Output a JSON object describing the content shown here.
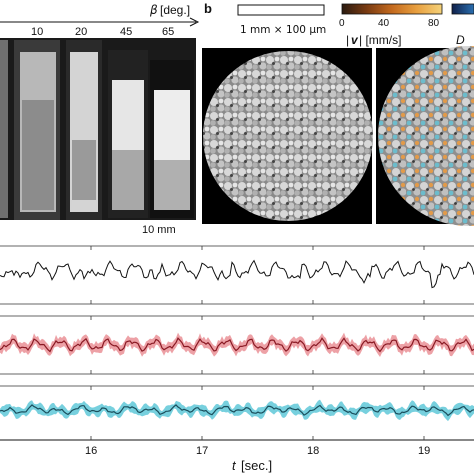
{
  "panel_a": {
    "angle_label_symbol": "β",
    "angle_label_unit": "[deg.]",
    "angles": [
      "10",
      "20",
      "45",
      "65"
    ],
    "scale_label": "10 mm"
  },
  "panel_b": {
    "letter": "b",
    "scale_bar_label": "1 mm × 100 μm",
    "colorbar_ticks": [
      "0",
      "40",
      "80"
    ],
    "colorbar_label_prefix": "|",
    "colorbar_label_symbol": "v",
    "colorbar_label_suffix": "| [mm/s]",
    "second_colorbar_label": "D",
    "colorbar_colors": [
      "#2a1a10",
      "#7a3b12",
      "#c46a1e",
      "#e8a040",
      "#f5d27a"
    ]
  },
  "time_series": {
    "x_ticks": [
      "16",
      "17",
      "18",
      "19"
    ],
    "x_label_symbol": "t",
    "x_label_unit": "[sec.]",
    "colors": {
      "black": "#111111",
      "red": "#c0303a",
      "red_band": "#e88a90",
      "teal": "#1f6f80",
      "teal_band": "#5fc8d8"
    }
  }
}
